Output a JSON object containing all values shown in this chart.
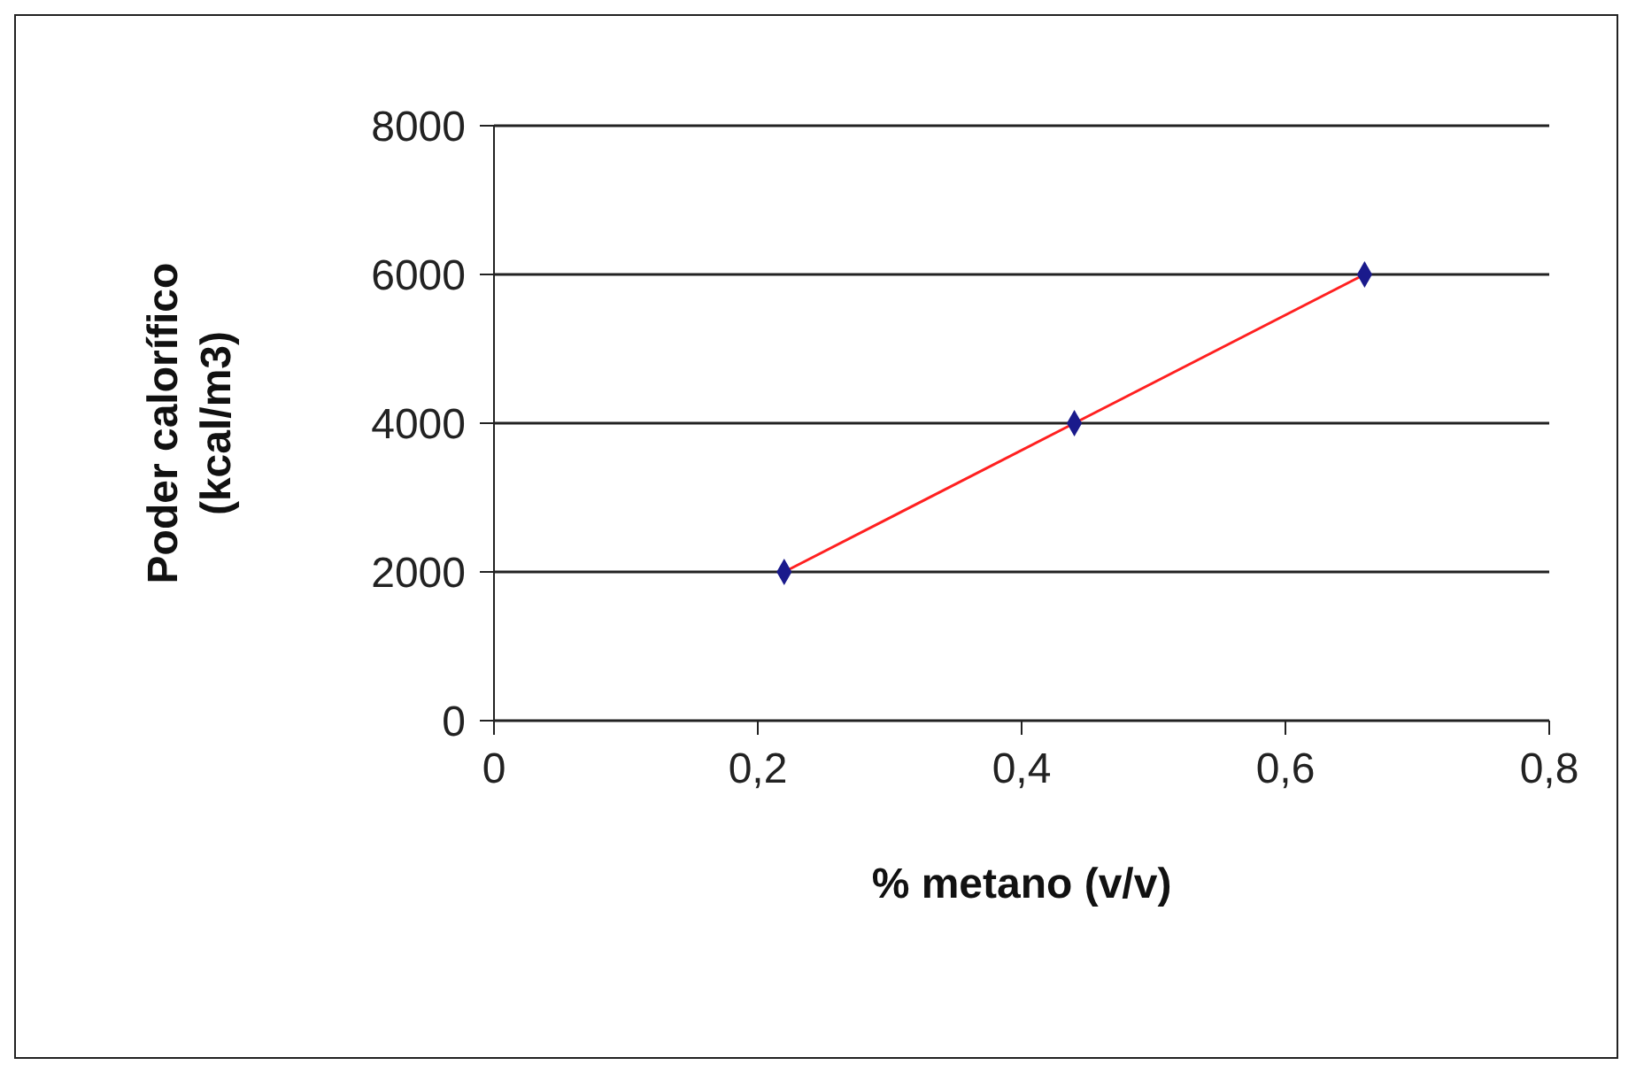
{
  "chart_data": {
    "type": "scatter",
    "xlabel": "% metano (v/v)",
    "ylabel": "Poder calorífico (kcal/m3)",
    "series": [
      {
        "color": "#1a1a8c",
        "x": [
          0.22,
          0.44,
          0.66
        ],
        "values": [
          2000,
          4000,
          6000
        ],
        "marker": "diamond"
      },
      {
        "type": "line",
        "color": "#ff2020",
        "x": [
          0.22,
          0.44,
          0.66
        ],
        "values": [
          2000,
          4000,
          6000
        ],
        "marker": "none"
      }
    ],
    "xlim": [
      0,
      0.8
    ],
    "xticks": [
      0,
      {
        "value": 0.2,
        "label": "0,2"
      },
      {
        "value": 0.4,
        "label": "0,4"
      },
      {
        "value": 0.6,
        "label": "0,6"
      },
      {
        "value": 0.8,
        "label": "0,8"
      }
    ],
    "ylim": [
      0,
      8000
    ],
    "yticks": [
      0,
      2000,
      4000,
      6000,
      8000
    ],
    "grid": "y",
    "legend": false
  }
}
